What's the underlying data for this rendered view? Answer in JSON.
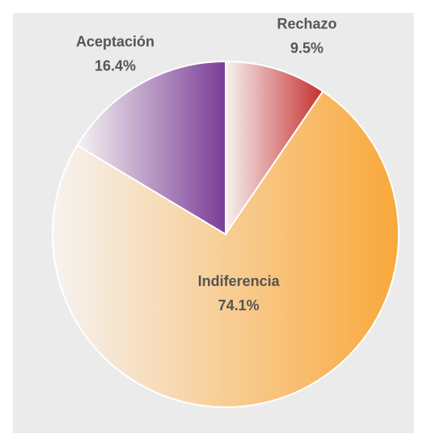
{
  "chart_data": {
    "type": "pie",
    "categories": [
      "Rechazo",
      "Indiferencia",
      "Aceptación"
    ],
    "values": [
      9.5,
      74.1,
      16.4
    ],
    "value_labels": [
      "9.5%",
      "74.1%",
      "16.4%"
    ],
    "colors": [
      "#c62f2f",
      "#f9a83a",
      "#7a3d98"
    ]
  }
}
